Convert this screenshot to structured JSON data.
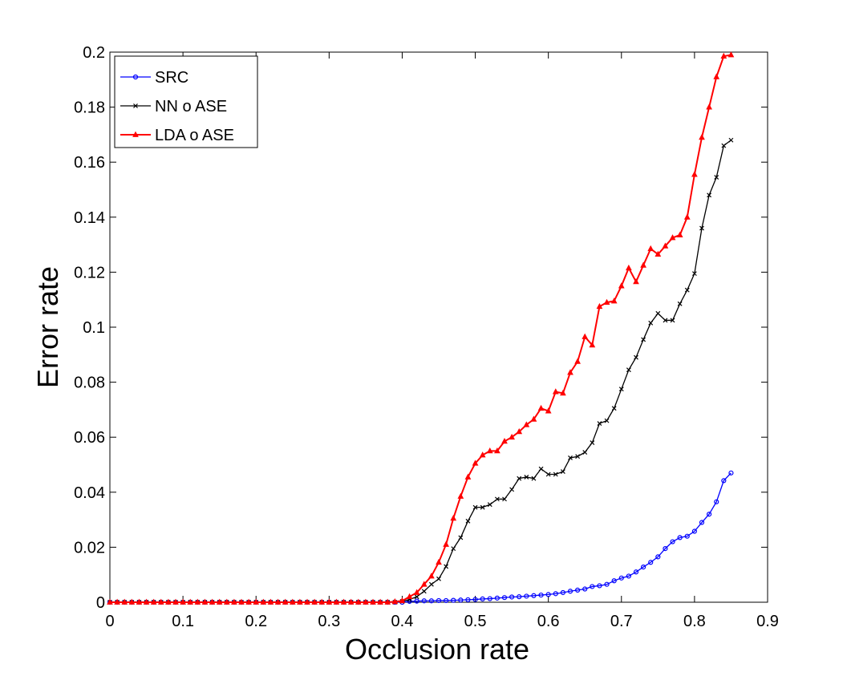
{
  "chart_data": {
    "type": "line",
    "xlabel": "Occlusion rate",
    "ylabel": "Error rate",
    "xlim": [
      0,
      0.9
    ],
    "ylim": [
      0,
      0.2
    ],
    "xticks": [
      "0",
      "0.1",
      "0.2",
      "0.3",
      "0.4",
      "0.5",
      "0.6",
      "0.7",
      "0.8",
      "0.9"
    ],
    "yticks": [
      "0",
      "0.02",
      "0.04",
      "0.06",
      "0.08",
      "0.1",
      "0.12",
      "0.14",
      "0.16",
      "0.18",
      "0.2"
    ],
    "grid": false,
    "legend_position": "top-left",
    "x": [
      0,
      0.01,
      0.02,
      0.03,
      0.04,
      0.05,
      0.06,
      0.07,
      0.08,
      0.09,
      0.1,
      0.11,
      0.12,
      0.13,
      0.14,
      0.15,
      0.16,
      0.17,
      0.18,
      0.19,
      0.2,
      0.21,
      0.22,
      0.23,
      0.24,
      0.25,
      0.26,
      0.27,
      0.28,
      0.29,
      0.3,
      0.31,
      0.32,
      0.33,
      0.34,
      0.35,
      0.36,
      0.37,
      0.38,
      0.39,
      0.4,
      0.41,
      0.42,
      0.43,
      0.44,
      0.45,
      0.46,
      0.47,
      0.48,
      0.49,
      0.5,
      0.51,
      0.52,
      0.53,
      0.54,
      0.55,
      0.56,
      0.57,
      0.58,
      0.59,
      0.6,
      0.61,
      0.62,
      0.63,
      0.64,
      0.65,
      0.66,
      0.67,
      0.68,
      0.69,
      0.7,
      0.71,
      0.72,
      0.73,
      0.74,
      0.75,
      0.76,
      0.77,
      0.78,
      0.79,
      0.8,
      0.81,
      0.82,
      0.83,
      0.84,
      0.85
    ],
    "series": [
      {
        "name": "SRC",
        "color": "#0000ff",
        "marker": "circle",
        "values": [
          0,
          0,
          0,
          0,
          0,
          0,
          0,
          0,
          0,
          0,
          0,
          0,
          0,
          0,
          0,
          0,
          0,
          0,
          0,
          0,
          0,
          0,
          0,
          0,
          0,
          0,
          0,
          0,
          0,
          0,
          0,
          0,
          0,
          0,
          0,
          0,
          0,
          0,
          0,
          0,
          0,
          0.0003,
          0.0004,
          0.0005,
          0.0005,
          0.0006,
          0.0006,
          0.0007,
          0.0008,
          0.0009,
          0.001,
          0.0012,
          0.0013,
          0.0015,
          0.0017,
          0.0019,
          0.002,
          0.0022,
          0.0024,
          0.0026,
          0.0028,
          0.0031,
          0.0035,
          0.004,
          0.0044,
          0.0048,
          0.0057,
          0.006,
          0.0065,
          0.0078,
          0.0088,
          0.0095,
          0.011,
          0.0128,
          0.0145,
          0.0165,
          0.0195,
          0.022,
          0.0235,
          0.024,
          0.0258,
          0.029,
          0.032,
          0.0365,
          0.0442,
          0.047
        ]
      },
      {
        "name": "NN o ASE",
        "color": "#000000",
        "marker": "x",
        "values": [
          0,
          0,
          0,
          0,
          0,
          0,
          0,
          0,
          0,
          0,
          0,
          0,
          0,
          0,
          0,
          0,
          0,
          0,
          0,
          0,
          0,
          0,
          0,
          0,
          0,
          0,
          0,
          0,
          0,
          0,
          0,
          0,
          0,
          0,
          0,
          0,
          0,
          0,
          0,
          0,
          0.0003,
          0.001,
          0.002,
          0.004,
          0.0065,
          0.0085,
          0.013,
          0.0195,
          0.0235,
          0.0295,
          0.0345,
          0.0345,
          0.0355,
          0.0375,
          0.0375,
          0.041,
          0.045,
          0.0455,
          0.045,
          0.0485,
          0.0465,
          0.0465,
          0.0475,
          0.0525,
          0.053,
          0.0545,
          0.058,
          0.065,
          0.066,
          0.0705,
          0.0775,
          0.0845,
          0.089,
          0.0955,
          0.1015,
          0.105,
          0.1025,
          0.1025,
          0.1085,
          0.1135,
          0.1195,
          0.136,
          0.148,
          0.1545,
          0.166,
          0.168
        ]
      },
      {
        "name": "LDA o ASE",
        "color": "#ff0000",
        "marker": "triangle",
        "values": [
          0,
          0,
          0,
          0,
          0,
          0,
          0,
          0,
          0,
          0,
          0,
          0,
          0,
          0,
          0,
          0,
          0,
          0,
          0,
          0,
          0,
          0,
          0,
          0,
          0,
          0,
          0,
          0,
          0,
          0,
          0,
          0,
          0,
          0,
          0,
          0,
          0,
          0,
          0,
          0.0002,
          0.0005,
          0.002,
          0.0035,
          0.0065,
          0.0095,
          0.0145,
          0.021,
          0.0305,
          0.0385,
          0.0455,
          0.0505,
          0.0535,
          0.055,
          0.055,
          0.0585,
          0.06,
          0.062,
          0.0645,
          0.0665,
          0.0705,
          0.0695,
          0.0765,
          0.076,
          0.0835,
          0.0875,
          0.0965,
          0.0935,
          0.1075,
          0.109,
          0.1095,
          0.115,
          0.1215,
          0.1165,
          0.1225,
          0.1285,
          0.1265,
          0.1295,
          0.1325,
          0.1335,
          0.14,
          0.1555,
          0.169,
          0.18,
          0.191,
          0.1985,
          0.199
        ]
      }
    ]
  }
}
